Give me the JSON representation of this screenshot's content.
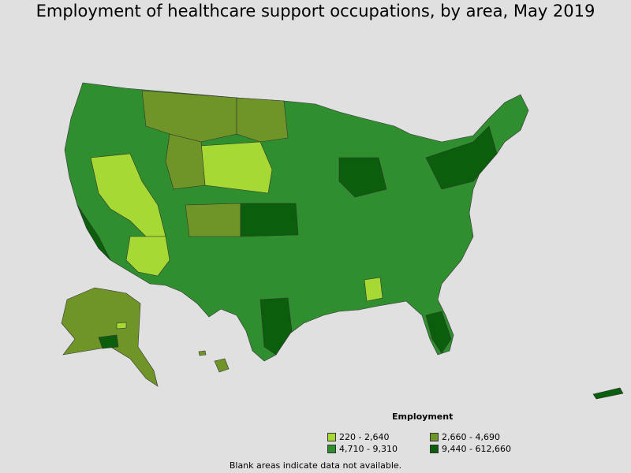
{
  "title": "Employment of healthcare support occupations, by area, May 2019",
  "legend": {
    "title": "Employment",
    "items": [
      {
        "label": "220 - 2,640",
        "color": "#a6d933"
      },
      {
        "label": "2,660 - 4,690",
        "color": "#6f9428"
      },
      {
        "label": "4,710 - 9,310",
        "color": "#2f8f2f"
      },
      {
        "label": "9,440 - 612,660",
        "color": "#0b5e0b"
      }
    ]
  },
  "footnote": "Blank areas indicate data not available."
}
